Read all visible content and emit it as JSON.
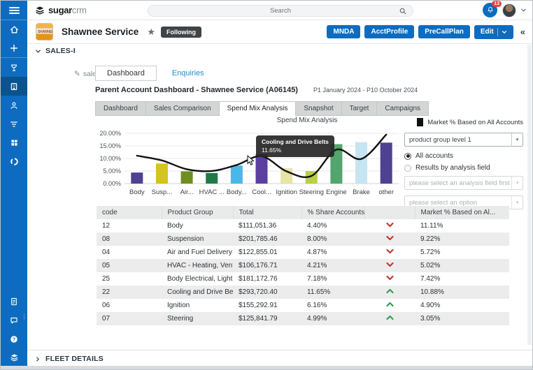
{
  "topbar": {
    "brand_bold": "sugar",
    "brand_light": "crm",
    "search_placeholder": "Search",
    "notification_count": "13"
  },
  "sidebar": {
    "icons": [
      "menu-icon",
      "home-icon",
      "plus-icon",
      "opportunities-icon",
      "accounts-icon",
      "contacts-icon",
      "filter-icon",
      "apps-grid-icon",
      "sync-icon",
      "document-icon",
      "chat-icon",
      "help-icon",
      "sugarcrm-logo-icon"
    ],
    "active_item": "accounts"
  },
  "record_header": {
    "title": "Shawnee Service",
    "following_label": "Following",
    "buttons": {
      "mnda": "MNDA",
      "acct_profile": "AcctProfile",
      "pre_call_plan": "PreCallPlan",
      "edit": "Edit"
    },
    "collapse_glyph": "«"
  },
  "salesi": {
    "section_label": "SALES-I",
    "edit_label": "sales-i",
    "tabs": [
      "Dashboard",
      "Enquiries"
    ],
    "active_tab": "Dashboard",
    "title": "Parent Account Dashboard - Shawnee Service (A06145)",
    "period": "P1 January 2024 - P10 October 2024",
    "subtabs": [
      "Dashboard",
      "Sales Comparison",
      "Spend Mix Analysis",
      "Snapshot",
      "Target",
      "Campaigns"
    ],
    "active_subtab": "Spend Mix Analysis"
  },
  "controls": {
    "legend": "Market % Based on All Accounts",
    "group_select_value": "product group level 1",
    "radio_all_accounts": "All accounts",
    "radio_results_by": "Results by analysis field",
    "select_analysis_placeholder": "please select an analysis field first",
    "select_option_placeholder": "please select an option"
  },
  "chart_data": {
    "type": "bar",
    "title": "Spend Mix Analysis",
    "categories": [
      "Body",
      "Susp...",
      "Air...",
      "HVAC ...",
      "Body...",
      "Cool...",
      "Ignition",
      "Steering",
      "Engine",
      "Brake",
      "other"
    ],
    "series": [
      {
        "name": "% Share Accounts Purchasing",
        "type": "bar",
        "values": [
          4.4,
          8.0,
          4.87,
          4.21,
          7.18,
          11.65,
          6.16,
          4.99,
          15.7,
          16.5,
          16.3
        ],
        "colors": [
          "#4e4191",
          "#d4c41f",
          "#6e8e22",
          "#1f7a48",
          "#49b8e8",
          "#5b3fa0",
          "#e7e4a6",
          "#b9ce44",
          "#53a56d",
          "#c7e4f3",
          "#4e4191"
        ]
      },
      {
        "name": "Market % Based on All Accounts",
        "type": "line",
        "values": [
          11.11,
          9.22,
          5.72,
          5.02,
          7.42,
          10.88,
          4.9,
          3.05,
          13.5,
          9.8,
          19.5
        ],
        "color": "#111111"
      }
    ],
    "ylim": [
      0,
      20
    ],
    "yticks": [
      "0.00%",
      "5.00%",
      "10.00%",
      "15.00%",
      "20.00%"
    ],
    "grid": true,
    "legend_position": "top-right"
  },
  "tooltip": {
    "title": "Cooling and Drive Belts",
    "value": "11.65%"
  },
  "table": {
    "headers": [
      "code",
      "Product Group",
      "Total",
      "% Share Accounts Pur...",
      "",
      "Market % Based on Al..."
    ],
    "rows": [
      {
        "code": "12",
        "group": "Body",
        "total": "$111,051.36",
        "share": "4.40%",
        "trend": "down",
        "market": "11.11%"
      },
      {
        "code": "08",
        "group": "Suspension",
        "total": "$201,785.46",
        "share": "8.00%",
        "trend": "down",
        "market": "9.22%"
      },
      {
        "code": "04",
        "group": "Air and Fuel Delivery",
        "total": "$122,855.01",
        "share": "4.87%",
        "trend": "down",
        "market": "5.72%"
      },
      {
        "code": "05",
        "group": "HVAC - Heating, Ventilatio",
        "total": "$106,176.71",
        "share": "4.21%",
        "trend": "down",
        "market": "5.02%"
      },
      {
        "code": "25",
        "group": "Body Electrical, Lighting, F",
        "total": "$181,172.76",
        "share": "7.18%",
        "trend": "down",
        "market": "7.42%"
      },
      {
        "code": "22",
        "group": "Cooling and Drive Belts",
        "total": "$293,720.40",
        "share": "11.65%",
        "trend": "up",
        "market": "10.88%"
      },
      {
        "code": "06",
        "group": "Ignition",
        "total": "$155,292.91",
        "share": "6.16%",
        "trend": "up",
        "market": "4.90%"
      },
      {
        "code": "07",
        "group": "Steering",
        "total": "$125,841.79",
        "share": "4.99%",
        "trend": "up",
        "market": "3.05%"
      }
    ],
    "trend_colors": {
      "down": "#c0392b",
      "up": "#2e9e5b"
    }
  },
  "fleet": {
    "section_label": "FLEET DETAILS"
  }
}
